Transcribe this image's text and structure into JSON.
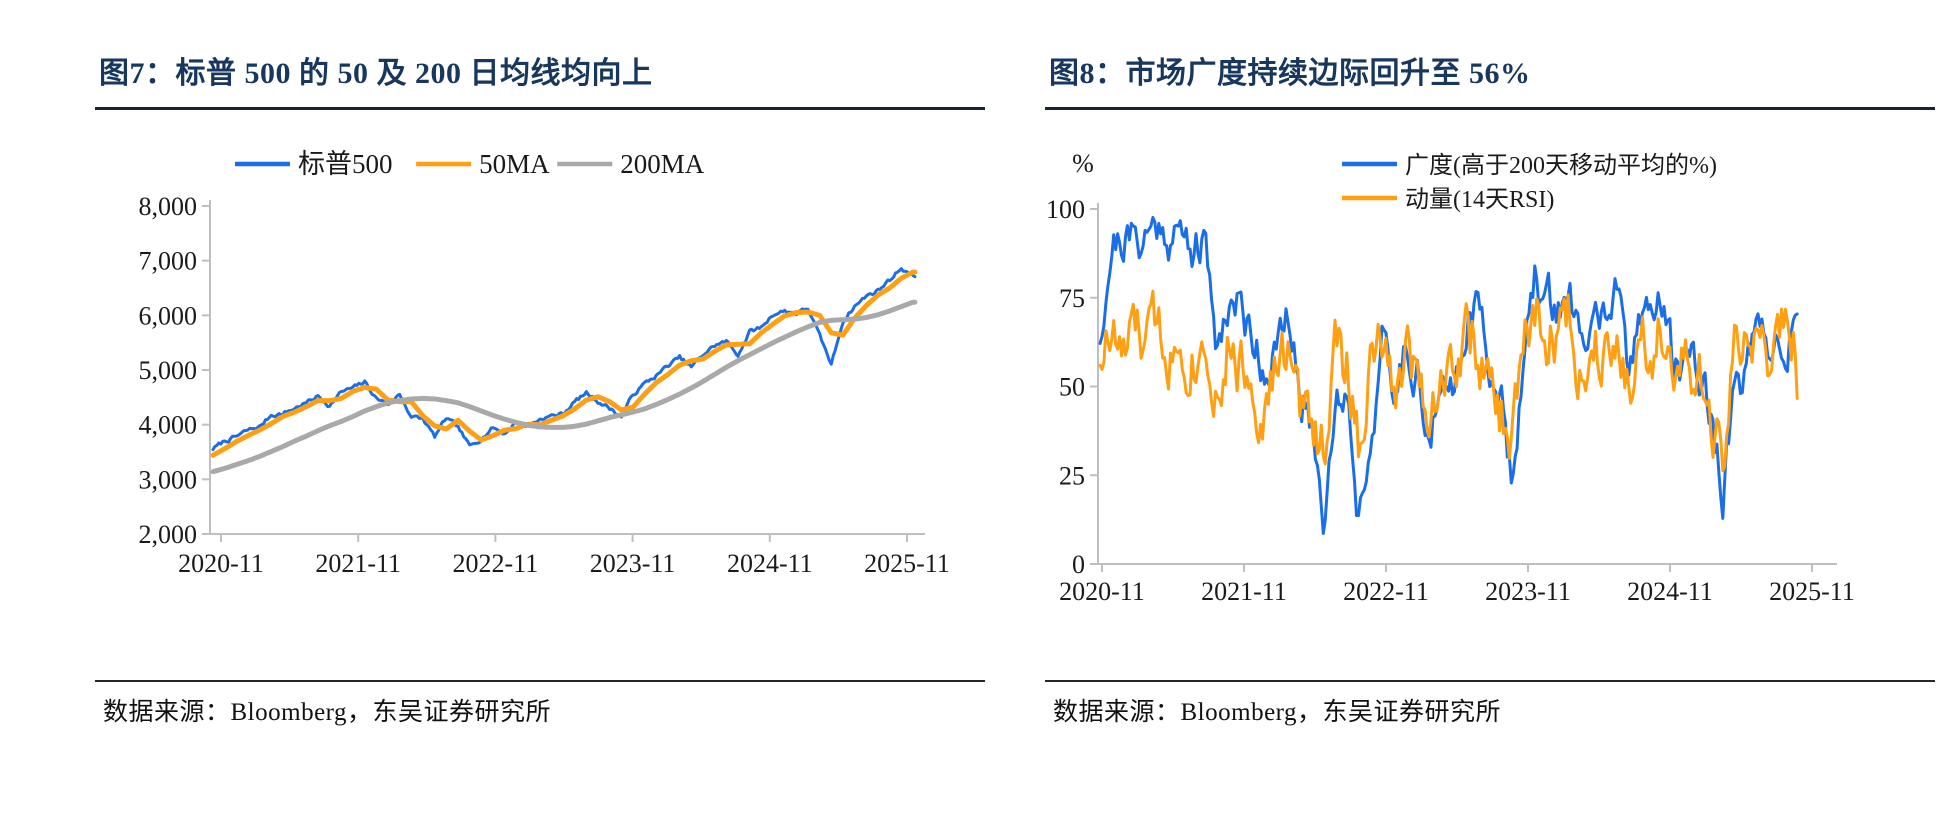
{
  "colors": {
    "accent_navy": "#17375e",
    "line_blue": "#1a6ee8",
    "line_orange": "#ffa014",
    "line_gray": "#a9a9a9",
    "axis_gray": "#bfbfbf",
    "rule_dark": "#262626"
  },
  "figures": [
    {
      "title": "图7：标普 500 的 50 及 200 日均线均向上",
      "source": "数据来源：Bloomberg，东吴证券研究所"
    },
    {
      "title": "图8：市场广度持续边际回升至 56%",
      "source": "数据来源：Bloomberg，东吴证券研究所"
    }
  ],
  "chart_data": [
    {
      "type": "line",
      "title": "图7：标普 500 的 50 及 200 日均线均向上",
      "x": "months from 2020-11 to 2025-11 (index 0-60)",
      "x_tick_labels": [
        "2020-11",
        "2021-11",
        "2022-11",
        "2023-11",
        "2024-11",
        "2025-11"
      ],
      "ylim": [
        2000,
        8000
      ],
      "y_ticks": [
        2000,
        3000,
        4000,
        5000,
        6000,
        7000,
        8000
      ],
      "y_tick_labels": [
        "2,000",
        "3,000",
        "4,000",
        "5,000",
        "6,000",
        "7,000",
        "8,000"
      ],
      "grid": false,
      "legend_position": "top-center",
      "series": [
        {
          "name": "标普500",
          "color": "#1a6ee8",
          "width": 3,
          "jitter": 40,
          "seed": 7,
          "values": [
            3560,
            3700,
            3780,
            3900,
            3960,
            4180,
            4200,
            4300,
            4400,
            4520,
            4350,
            4600,
            4670,
            4780,
            4480,
            4380,
            4550,
            4150,
            4100,
            3780,
            4120,
            3950,
            3600,
            3750,
            3950,
            3840,
            4050,
            3980,
            4100,
            4160,
            4200,
            4420,
            4580,
            4430,
            4300,
            4150,
            4550,
            4750,
            4900,
            5080,
            5230,
            5050,
            5280,
            5450,
            5520,
            5280,
            5700,
            5780,
            6020,
            6080,
            6040,
            6130,
            5620,
            5100,
            5900,
            6170,
            6350,
            6460,
            6650,
            6870,
            6720
          ]
        },
        {
          "name": "50MA",
          "color": "#ffa014",
          "width": 5,
          "jitter": 0,
          "seed": 11,
          "values": [
            3440,
            3560,
            3690,
            3800,
            3900,
            4020,
            4150,
            4230,
            4330,
            4440,
            4440,
            4480,
            4610,
            4680,
            4650,
            4450,
            4420,
            4420,
            4160,
            3980,
            3920,
            4080,
            3880,
            3720,
            3800,
            3900,
            3930,
            4010,
            4000,
            4080,
            4160,
            4290,
            4450,
            4510,
            4420,
            4270,
            4320,
            4560,
            4770,
            4920,
            5090,
            5170,
            5200,
            5340,
            5460,
            5470,
            5480,
            5680,
            5840,
            5990,
            6050,
            6060,
            6000,
            5680,
            5640,
            5950,
            6180,
            6370,
            6500,
            6680,
            6790
          ]
        },
        {
          "name": "200MA",
          "color": "#a9a9a9",
          "width": 5,
          "jitter": 0,
          "seed": 13,
          "values": [
            3140,
            3200,
            3270,
            3340,
            3420,
            3510,
            3600,
            3700,
            3790,
            3890,
            3980,
            4060,
            4150,
            4250,
            4330,
            4400,
            4440,
            4470,
            4480,
            4470,
            4440,
            4400,
            4330,
            4250,
            4170,
            4100,
            4040,
            3990,
            3960,
            3950,
            3950,
            3970,
            4010,
            4070,
            4130,
            4180,
            4230,
            4290,
            4370,
            4460,
            4560,
            4670,
            4790,
            4920,
            5050,
            5170,
            5280,
            5390,
            5500,
            5600,
            5700,
            5790,
            5870,
            5910,
            5920,
            5930,
            5960,
            6010,
            6080,
            6160,
            6240
          ]
        }
      ]
    },
    {
      "type": "line",
      "title": "图8：市场广度持续边际回升至 56%",
      "y_axis_unit": "%",
      "x": "months from 2020-11 to 2025-11 (index 0-60)",
      "x_tick_labels": [
        "2020-11",
        "2021-11",
        "2022-11",
        "2023-11",
        "2024-11",
        "2025-11"
      ],
      "ylim": [
        0,
        100
      ],
      "y_ticks": [
        0,
        25,
        50,
        75,
        100
      ],
      "y_tick_labels": [
        "0",
        "25",
        "50",
        "75",
        "100"
      ],
      "grid": false,
      "legend_position": "top-right",
      "series": [
        {
          "name": "广度(高于200天移动平均的%)",
          "color": "#1a6ee8",
          "width": 3,
          "jitter": 7,
          "seed": 21,
          "values": [
            65,
            90,
            92,
            91,
            93,
            96,
            93,
            92,
            90,
            88,
            62,
            75,
            72,
            65,
            55,
            60,
            68,
            48,
            40,
            15,
            45,
            50,
            14,
            35,
            62,
            45,
            62,
            55,
            35,
            45,
            50,
            68,
            72,
            60,
            48,
            28,
            55,
            78,
            75,
            72,
            78,
            58,
            68,
            72,
            75,
            52,
            72,
            75,
            70,
            55,
            60,
            56,
            42,
            20,
            48,
            55,
            62,
            58,
            65,
            62,
            56
          ]
        },
        {
          "name": "动量(14天RSI)",
          "color": "#ffa014",
          "width": 3,
          "jitter": 10,
          "seed": 33,
          "values": [
            60,
            64,
            58,
            65,
            62,
            68,
            60,
            63,
            58,
            65,
            48,
            62,
            55,
            52,
            42,
            55,
            60,
            42,
            45,
            32,
            60,
            55,
            35,
            55,
            62,
            45,
            62,
            55,
            45,
            52,
            55,
            65,
            62,
            48,
            42,
            35,
            60,
            72,
            62,
            65,
            70,
            52,
            60,
            65,
            68,
            48,
            65,
            62,
            68,
            55,
            52,
            50,
            38,
            30,
            58,
            60,
            65,
            58,
            66,
            62,
            36
          ]
        }
      ]
    }
  ]
}
